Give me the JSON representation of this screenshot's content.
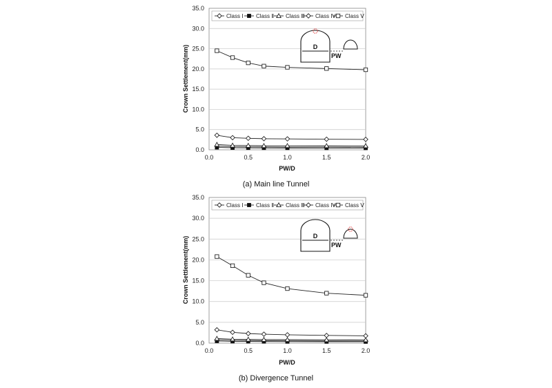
{
  "chart_data": [
    {
      "type": "line",
      "caption": "(a)  Main line Tunnel",
      "xlabel": "PW/D",
      "ylabel": "Crown Settlement(mm)",
      "xlim": [
        0.0,
        2.0
      ],
      "ylim": [
        0.0,
        35.0
      ],
      "xticks": [
        "0.0",
        "0.5",
        "1.0",
        "1.5",
        "2.0"
      ],
      "yticks": [
        "0.0",
        "5.0",
        "10.0",
        "15.0",
        "20.0",
        "25.0",
        "30.0",
        "35.0"
      ],
      "x": [
        0.1,
        0.3,
        0.5,
        0.7,
        1.0,
        1.5,
        2.0
      ],
      "series": [
        {
          "name": "Class Ⅰ",
          "marker": "diamond-open",
          "values": [
            0.9,
            0.75,
            0.72,
            0.7,
            0.68,
            0.67,
            0.66
          ]
        },
        {
          "name": "Class Ⅱ",
          "marker": "square-filled",
          "values": [
            0.6,
            0.5,
            0.48,
            0.46,
            0.45,
            0.44,
            0.43
          ]
        },
        {
          "name": "Class Ⅲ",
          "marker": "triangle-open",
          "values": [
            1.3,
            1.1,
            1.05,
            1.0,
            1.0,
            0.98,
            0.97
          ]
        },
        {
          "name": "Class Ⅳ",
          "marker": "diamond-open",
          "values": [
            3.6,
            3.0,
            2.85,
            2.75,
            2.7,
            2.62,
            2.58
          ]
        },
        {
          "name": "Class Ⅴ",
          "marker": "square-open",
          "values": [
            24.5,
            22.8,
            21.5,
            20.7,
            20.4,
            20.1,
            19.8
          ]
        }
      ],
      "schematic": {
        "d_label": "D",
        "pw_label": "PW",
        "marker_on": "main"
      }
    },
    {
      "type": "line",
      "caption": "(b)  Divergence Tunnel",
      "xlabel": "PW/D",
      "ylabel": "Crown Settlement(mm)",
      "xlim": [
        0.0,
        2.0
      ],
      "ylim": [
        0.0,
        35.0
      ],
      "xticks": [
        "0.0",
        "0.5",
        "1.0",
        "1.5",
        "2.0"
      ],
      "yticks": [
        "0.0",
        "5.0",
        "10.0",
        "15.0",
        "20.0",
        "25.0",
        "30.0",
        "35.0"
      ],
      "x": [
        0.1,
        0.3,
        0.5,
        0.7,
        1.0,
        1.5,
        2.0
      ],
      "series": [
        {
          "name": "Class Ⅰ",
          "marker": "diamond-open",
          "values": [
            0.8,
            0.68,
            0.62,
            0.58,
            0.55,
            0.52,
            0.5
          ]
        },
        {
          "name": "Class Ⅱ",
          "marker": "square-filled",
          "values": [
            0.5,
            0.42,
            0.4,
            0.38,
            0.36,
            0.35,
            0.34
          ]
        },
        {
          "name": "Class Ⅲ",
          "marker": "triangle-open",
          "values": [
            1.1,
            0.95,
            0.9,
            0.86,
            0.83,
            0.8,
            0.78
          ]
        },
        {
          "name": "Class Ⅳ",
          "marker": "diamond-open",
          "values": [
            3.2,
            2.6,
            2.3,
            2.15,
            2.0,
            1.85,
            1.75
          ]
        },
        {
          "name": "Class Ⅴ",
          "marker": "square-open",
          "values": [
            20.8,
            18.6,
            16.3,
            14.5,
            13.1,
            12.0,
            11.5
          ]
        }
      ],
      "schematic": {
        "d_label": "D",
        "pw_label": "PW",
        "marker_on": "divergence"
      }
    }
  ]
}
